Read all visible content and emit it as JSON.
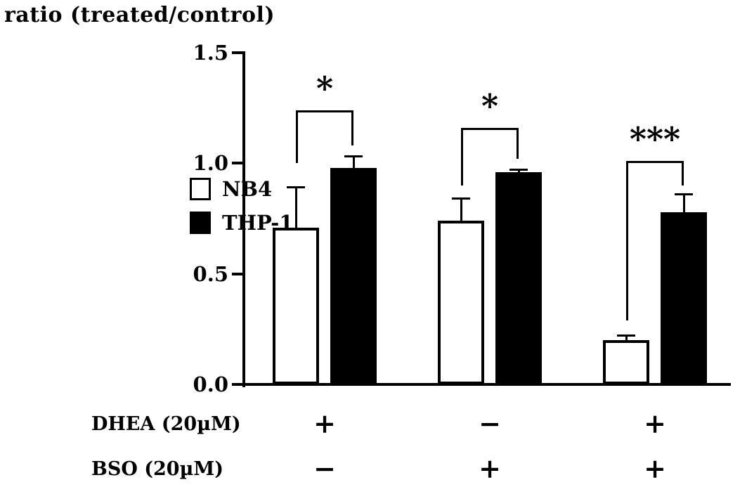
{
  "chart_data": {
    "type": "bar",
    "ylabel": "ratio (treated/control)",
    "ylim": [
      0,
      1.5
    ],
    "yticks": [
      0,
      0.5,
      1.0,
      1.5
    ],
    "ytick_labels": [
      "0.0",
      "0.5",
      "1.0",
      "1.5"
    ],
    "grid": false,
    "legend_position": "left",
    "series": [
      {
        "name": "NB4",
        "color": "#ffffff",
        "values": [
          0.71,
          0.74,
          0.2
        ],
        "errors": [
          0.18,
          0.1,
          0.02
        ]
      },
      {
        "name": "THP-1",
        "color": "#000000",
        "values": [
          0.98,
          0.96,
          0.78
        ],
        "errors": [
          0.05,
          0.01,
          0.08
        ]
      }
    ],
    "significance": [
      {
        "label": "*",
        "top": 1.24,
        "left_drop_to": 1.0,
        "right_drop_to": 1.08
      },
      {
        "label": "*",
        "top": 1.16,
        "left_drop_to": 0.9,
        "right_drop_to": 1.02
      },
      {
        "label": "***",
        "top": 1.01,
        "left_drop_to": 0.29,
        "right_drop_to": 0.9
      }
    ],
    "x_annotations": [
      {
        "label": "DHEA (20µM)",
        "values": [
          "+",
          "−",
          "+"
        ]
      },
      {
        "label": "BSO (20µM)",
        "values": [
          "−",
          "+",
          "+"
        ]
      }
    ],
    "colors": {
      "axis": "#000000",
      "bar_outline": "#000000",
      "filled_bar": "#000000",
      "open_bar": "#ffffff"
    }
  }
}
